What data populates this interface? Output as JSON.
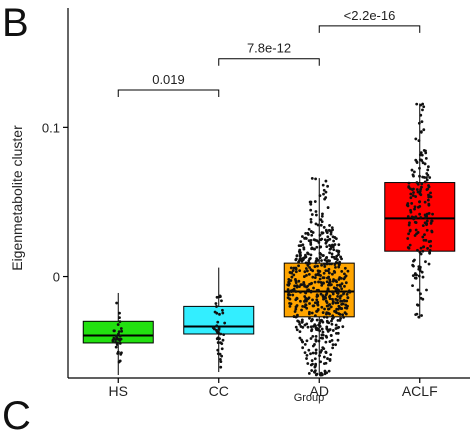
{
  "panel_letter": "B",
  "next_panel_letter_partial": "C",
  "chart_data": {
    "type": "box",
    "title": "",
    "xlabel": "Group",
    "ylabel": "Eigenmetabolite cluster",
    "ylim": [
      -0.068,
      0.18
    ],
    "yticks": [
      {
        "value": 0,
        "label": "0"
      },
      {
        "value": 0.1,
        "label": "0.1"
      }
    ],
    "grid": false,
    "legend": "none",
    "categories": [
      "HS",
      "CC",
      "AD",
      "ACLF"
    ],
    "boxes": [
      {
        "group": "HS",
        "color": "#22e010",
        "q1": -0.0445,
        "median": -0.0395,
        "q3": -0.03,
        "whisker_low": -0.066,
        "whisker_high": -0.011,
        "n_points": 35
      },
      {
        "group": "CC",
        "color": "#33eeff",
        "q1": -0.0385,
        "median": -0.0335,
        "q3": -0.02,
        "whisker_low": -0.064,
        "whisker_high": 0.006,
        "n_points": 40
      },
      {
        "group": "AD",
        "color": "#ffa500",
        "q1": -0.027,
        "median": -0.01,
        "q3": 0.009,
        "whisker_low": -0.066,
        "whisker_high": 0.066,
        "n_points": 600
      },
      {
        "group": "ACLF",
        "color": "#ff0000",
        "q1": 0.017,
        "median": 0.039,
        "q3": 0.063,
        "whisker_low": -0.028,
        "whisker_high": 0.116,
        "n_points": 180
      }
    ],
    "comparisons": [
      {
        "from": "HS",
        "to": "CC",
        "label": "0.019",
        "y": 0.125
      },
      {
        "from": "CC",
        "to": "AD",
        "label": "7.8e-12",
        "y": 0.146
      },
      {
        "from": "AD",
        "to": "ACLF",
        "label": "<2.2e-16",
        "y": 0.168
      }
    ]
  }
}
